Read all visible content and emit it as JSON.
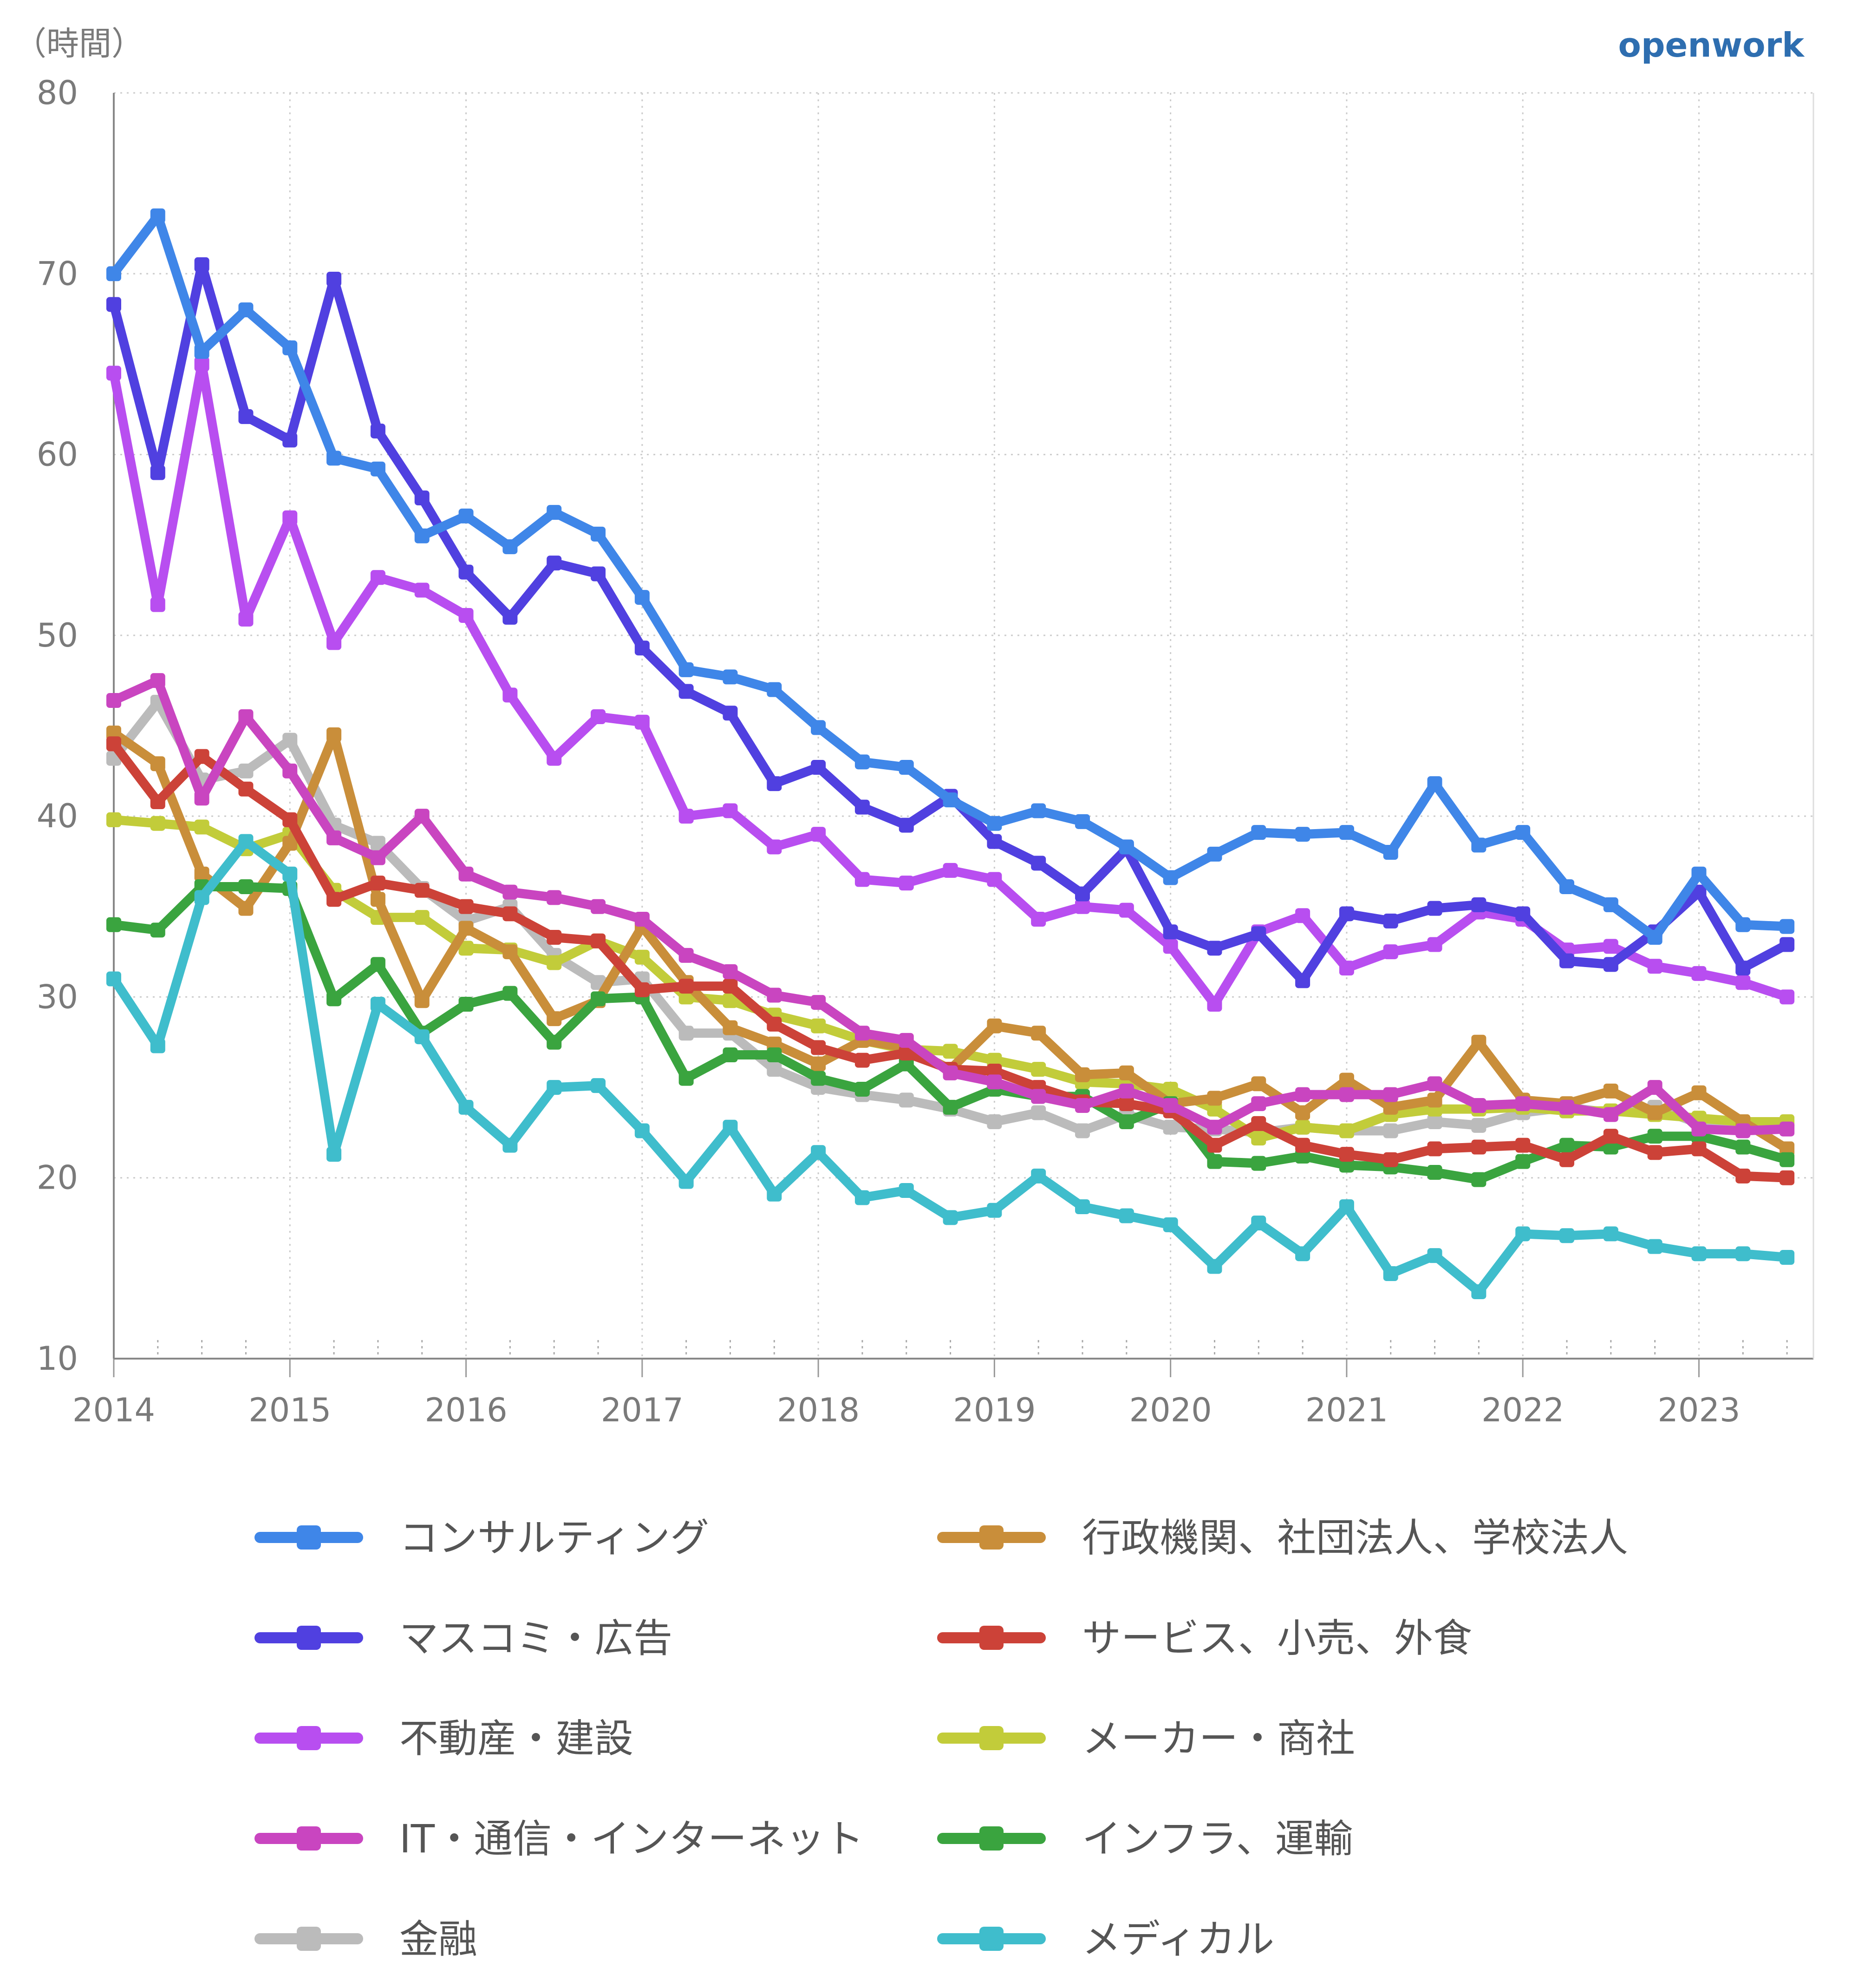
{
  "header": {
    "unit_label": "（時間）",
    "brand": "openwork"
  },
  "chart_data": {
    "type": "line",
    "ylim": [
      10,
      80
    ],
    "yticks": [
      10,
      20,
      30,
      40,
      50,
      60,
      70,
      80
    ],
    "xlim": [
      2014,
      2023.65
    ],
    "xticks": [
      "2014",
      "2015",
      "2016",
      "2017",
      "2018",
      "2019",
      "2020",
      "2021",
      "2022",
      "2023"
    ],
    "grid": true,
    "legend_position": "bottom",
    "x": [
      2014,
      2014.25,
      2014.5,
      2014.75,
      2015,
      2015.25,
      2015.5,
      2015.75,
      2016,
      2016.25,
      2016.5,
      2016.75,
      2017,
      2017.25,
      2017.5,
      2017.75,
      2018,
      2018.25,
      2018.5,
      2018.75,
      2019,
      2019.25,
      2019.5,
      2019.75,
      2020,
      2020.25,
      2020.5,
      2020.75,
      2021,
      2021.25,
      2021.5,
      2021.75,
      2022,
      2022.25,
      2022.5,
      2022.75,
      2023,
      2023.25,
      2023.5
    ],
    "series": [
      {
        "name": "金融",
        "color": "#bbbbbb",
        "values": [
          43.2,
          46.3,
          42.0,
          42.5,
          44.2,
          39.5,
          38.5,
          36.0,
          34.2,
          35.0,
          32.3,
          30.8,
          31.0,
          28.0,
          28.0,
          26.0,
          25.0,
          24.6,
          24.3,
          23.8,
          23.1,
          23.6,
          22.6,
          23.5,
          22.8,
          22.7,
          22.5,
          22.8,
          22.6,
          22.6,
          23.1,
          22.9,
          23.6,
          23.9,
          23.6,
          23.9,
          23.0,
          22.7,
          22.7
        ]
      },
      {
        "name": "メーカー・商社",
        "color": "#c2cc3a",
        "values": [
          39.8,
          39.6,
          39.4,
          38.2,
          39.0,
          35.9,
          34.4,
          34.4,
          32.7,
          32.6,
          31.9,
          33.1,
          32.2,
          30.0,
          29.8,
          29.0,
          28.4,
          27.6,
          27.1,
          27.0,
          26.5,
          26.0,
          25.3,
          25.2,
          24.9,
          23.8,
          22.2,
          22.8,
          22.6,
          23.5,
          23.8,
          23.8,
          23.9,
          23.7,
          23.7,
          23.5,
          23.3,
          23.1,
          23.1
        ]
      },
      {
        "name": "行政機関、社団法人、学校法人",
        "color": "#c98e3a",
        "values": [
          44.6,
          42.9,
          36.8,
          34.9,
          38.5,
          44.5,
          35.4,
          29.8,
          33.8,
          32.5,
          28.8,
          29.8,
          33.9,
          30.8,
          28.3,
          27.4,
          26.3,
          27.6,
          27.2,
          26.0,
          28.4,
          28.0,
          25.7,
          25.8,
          24.1,
          24.4,
          25.2,
          23.6,
          25.4,
          23.9,
          24.3,
          27.5,
          24.3,
          24.1,
          24.8,
          23.6,
          24.7,
          23.1,
          21.6
        ]
      },
      {
        "name": "インフラ、運輸",
        "color": "#3aa43f",
        "values": [
          34.0,
          33.7,
          36.1,
          36.1,
          36.0,
          29.9,
          31.8,
          28.0,
          29.6,
          30.2,
          27.5,
          29.9,
          30.0,
          25.5,
          26.8,
          26.8,
          25.5,
          24.9,
          26.3,
          23.9,
          24.9,
          24.5,
          24.5,
          23.1,
          24.1,
          20.9,
          20.8,
          21.2,
          20.7,
          20.6,
          20.3,
          19.9,
          20.9,
          21.8,
          21.7,
          22.3,
          22.3,
          21.7,
          21.0
        ]
      },
      {
        "name": "サービス、小売、外食",
        "color": "#cc4238",
        "values": [
          44.0,
          40.8,
          43.3,
          41.5,
          39.8,
          35.4,
          36.3,
          35.9,
          35.0,
          34.6,
          33.3,
          33.1,
          30.4,
          30.6,
          30.6,
          28.5,
          27.2,
          26.5,
          26.9,
          26.0,
          25.9,
          25.0,
          24.2,
          24.1,
          23.7,
          21.8,
          23.0,
          21.8,
          21.3,
          21.0,
          21.6,
          21.7,
          21.8,
          21.0,
          22.3,
          21.4,
          21.6,
          20.1,
          20.0
        ]
      },
      {
        "name": "IT・通信・インターネット",
        "color": "#c945c0",
        "values": [
          46.4,
          47.5,
          41.0,
          45.5,
          42.5,
          38.8,
          37.7,
          40.0,
          36.8,
          35.8,
          35.5,
          35.0,
          34.3,
          32.3,
          31.4,
          30.1,
          29.7,
          28.0,
          27.6,
          25.8,
          25.3,
          24.5,
          24.0,
          24.8,
          24.0,
          22.8,
          24.1,
          24.6,
          24.6,
          24.6,
          25.2,
          24.0,
          24.1,
          23.9,
          23.5,
          25.0,
          22.7,
          22.6,
          22.7
        ]
      },
      {
        "name": "メディカル",
        "color": "#3fbdcc",
        "values": [
          31.0,
          27.3,
          35.5,
          38.6,
          36.8,
          21.3,
          29.6,
          27.8,
          23.9,
          21.8,
          25.0,
          25.1,
          22.6,
          19.8,
          22.8,
          19.1,
          21.4,
          18.9,
          19.3,
          17.8,
          18.2,
          20.1,
          18.4,
          17.9,
          17.4,
          15.1,
          17.5,
          15.8,
          18.4,
          14.7,
          15.7,
          13.7,
          16.9,
          16.8,
          16.9,
          16.2,
          15.8,
          15.8,
          15.6
        ]
      },
      {
        "name": "不動産・建設",
        "color": "#b84ef0",
        "values": [
          64.5,
          51.7,
          65.0,
          50.9,
          56.5,
          49.6,
          53.2,
          52.5,
          51.1,
          46.7,
          43.2,
          45.5,
          45.2,
          40.0,
          40.3,
          38.3,
          39.0,
          36.5,
          36.3,
          37.0,
          36.5,
          34.3,
          35.0,
          34.8,
          32.8,
          29.6,
          33.6,
          34.5,
          31.6,
          32.5,
          32.9,
          34.7,
          34.3,
          32.6,
          32.8,
          31.7,
          31.3,
          30.8,
          30.0
        ]
      },
      {
        "name": "マスコミ・広告",
        "color": "#5040e0",
        "values": [
          68.3,
          59.0,
          70.5,
          62.1,
          60.8,
          69.7,
          61.3,
          57.6,
          53.5,
          51.0,
          54.0,
          53.4,
          49.3,
          46.9,
          45.7,
          41.8,
          42.7,
          40.5,
          39.5,
          41.1,
          38.6,
          37.4,
          35.7,
          38.2,
          33.6,
          32.7,
          33.5,
          30.9,
          34.6,
          34.2,
          34.9,
          35.1,
          34.6,
          32.0,
          31.8,
          33.6,
          35.8,
          31.6,
          32.9
        ]
      },
      {
        "name": "コンサルティング",
        "color": "#3f86e8",
        "values": [
          70.0,
          73.2,
          65.7,
          68.0,
          65.9,
          59.8,
          59.2,
          55.5,
          56.6,
          54.9,
          56.8,
          55.6,
          52.1,
          48.1,
          47.7,
          47.0,
          44.9,
          43.0,
          42.7,
          40.9,
          39.6,
          40.3,
          39.7,
          38.3,
          36.6,
          37.9,
          39.1,
          39.0,
          39.1,
          38.0,
          41.8,
          38.4,
          39.1,
          36.1,
          35.1,
          33.3,
          36.8,
          34.0,
          33.9
        ]
      }
    ],
    "legend": [
      {
        "name": "コンサルティング",
        "color": "#3f86e8"
      },
      {
        "name": "行政機関、社団法人、学校法人",
        "color": "#c98e3a"
      },
      {
        "name": "マスコミ・広告",
        "color": "#5040e0"
      },
      {
        "name": "サービス、小売、外食",
        "color": "#cc4238"
      },
      {
        "name": "不動産・建設",
        "color": "#b84ef0"
      },
      {
        "name": "メーカー・商社",
        "color": "#c2cc3a"
      },
      {
        "name": "IT・通信・インターネット",
        "color": "#c945c0"
      },
      {
        "name": "インフラ、運輸",
        "color": "#3aa43f"
      },
      {
        "name": "金融",
        "color": "#bbbbbb"
      },
      {
        "name": "メディカル",
        "color": "#3fbdcc"
      }
    ]
  }
}
